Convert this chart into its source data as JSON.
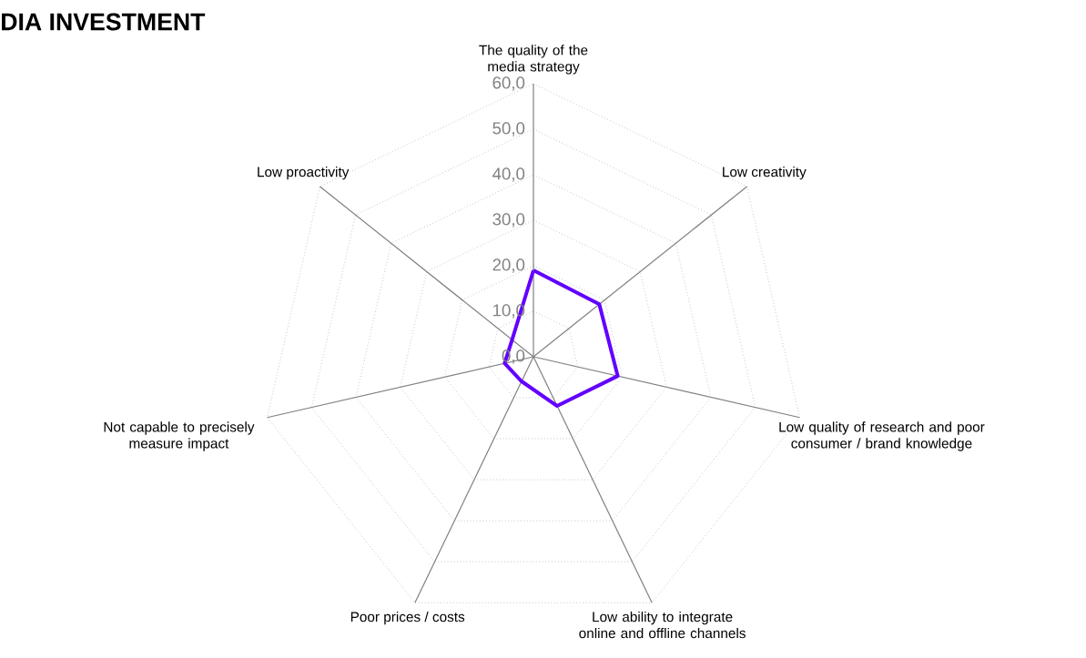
{
  "chart_data": {
    "type": "radar",
    "title": "DIA INVESTMENT",
    "categories": [
      "The quality of the media strategy",
      "Low creativity",
      "Low quality of research and poor consumer / brand knowledge",
      "Low ability to integrate online and offline channels",
      "Poor prices / costs",
      "Not capable to precisely measure impact",
      "Low proactivity"
    ],
    "series": [
      {
        "color": "#6200ff",
        "values": [
          19,
          18.5,
          19,
          12,
          6,
          6.5,
          6
        ]
      }
    ],
    "ylim": [
      0,
      60
    ],
    "yticks": [
      {
        "value": 0,
        "label": "0,0"
      },
      {
        "value": 10,
        "label": "10,0"
      },
      {
        "value": 20,
        "label": "20,0"
      },
      {
        "value": 30,
        "label": "30,0"
      },
      {
        "value": 40,
        "label": "40,0"
      },
      {
        "value": 50,
        "label": "50,0"
      },
      {
        "value": 60,
        "label": "60,0"
      }
    ],
    "grid": true
  }
}
